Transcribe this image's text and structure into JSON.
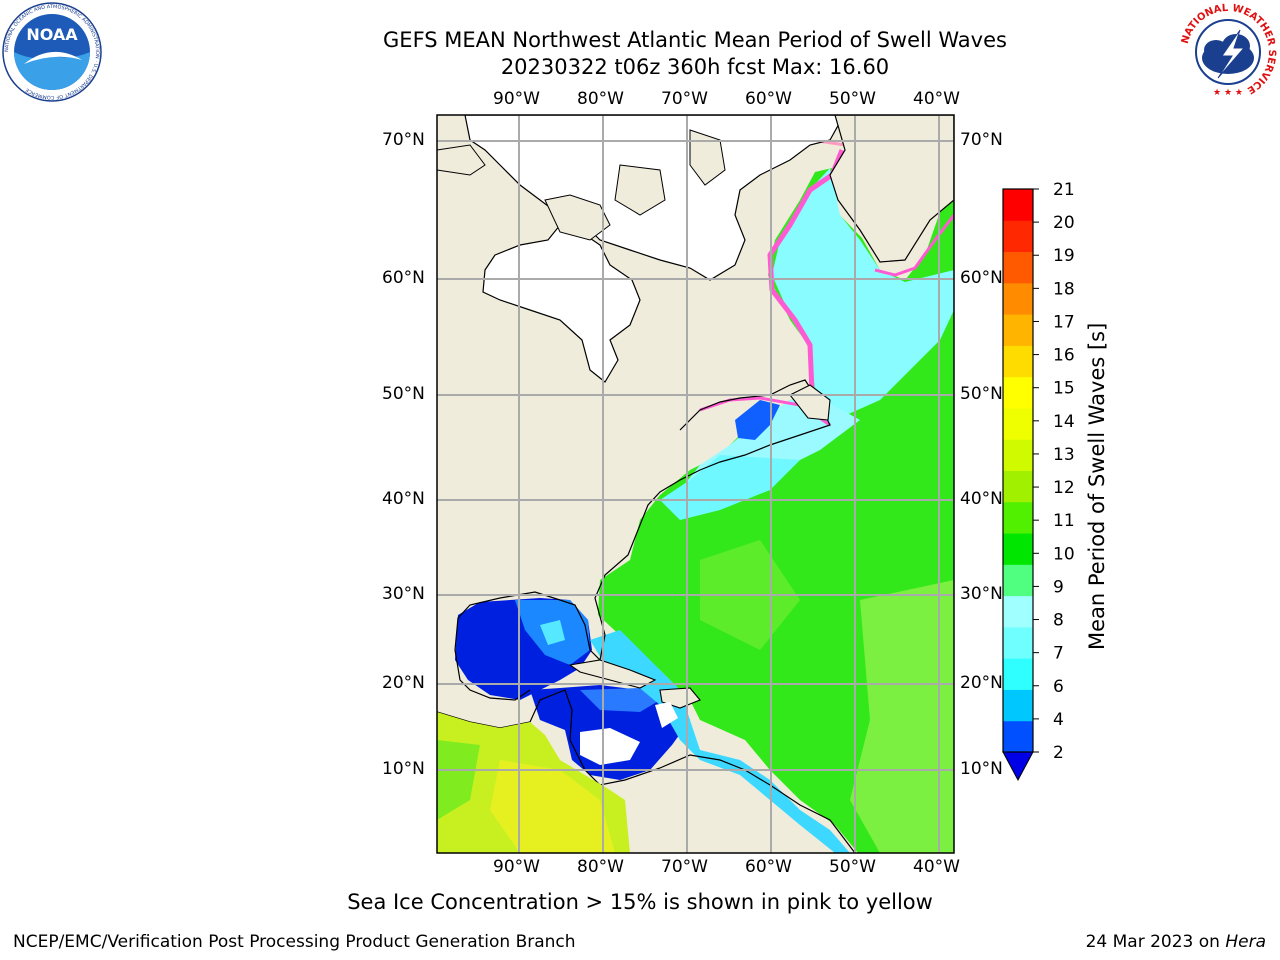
{
  "header": {
    "title_line1": "GEFS MEAN Northwest Atlantic Mean Period of Swell Waves",
    "title_line2": "20230322 t06z 360h fcst   Max: 16.60"
  },
  "logos": {
    "left": {
      "name": "noaa-logo",
      "text": "NOAA",
      "ring_text": "NATIONAL OCEANIC AND ATMOSPHERIC ADMINISTRATION · U.S. DEPARTMENT OF COMMERCE"
    },
    "right": {
      "name": "nws-logo",
      "ring_text": "NATIONAL WEATHER SERVICE"
    }
  },
  "map": {
    "lon_labels": [
      "90°W",
      "80°W",
      "70°W",
      "60°W",
      "50°W",
      "40°W"
    ],
    "lat_labels": [
      "70°N",
      "60°N",
      "50°N",
      "40°N",
      "30°N",
      "20°N",
      "10°N"
    ],
    "colors": {
      "land": "#efecdc",
      "ice_land": "#ffffff",
      "grid": "#aaaaaa"
    }
  },
  "colorbar": {
    "label": "Mean Period of Swell Waves [s]",
    "ticks": [
      "2",
      "4",
      "6",
      "7",
      "8",
      "9",
      "10",
      "11",
      "12",
      "13",
      "14",
      "15",
      "16",
      "17",
      "18",
      "19",
      "20",
      "21"
    ],
    "colors": [
      "#0050ff",
      "#00c8ff",
      "#30ffff",
      "#70ffff",
      "#a0ffff",
      "#50ff80",
      "#00e600",
      "#50f000",
      "#a0f000",
      "#d0fa00",
      "#f0ff00",
      "#ffff00",
      "#ffdc00",
      "#ffb400",
      "#ff8c00",
      "#ff5a00",
      "#ff2800",
      "#ff0000"
    ],
    "under_color": "#0000e6"
  },
  "footer": {
    "note": "Sea Ice Concentration > 15% is shown in pink to yellow",
    "credit": "NCEP/EMC/Verification Post Processing Product Generation Branch",
    "date": "24 Mar 2023 on ",
    "machine": "Hera"
  }
}
